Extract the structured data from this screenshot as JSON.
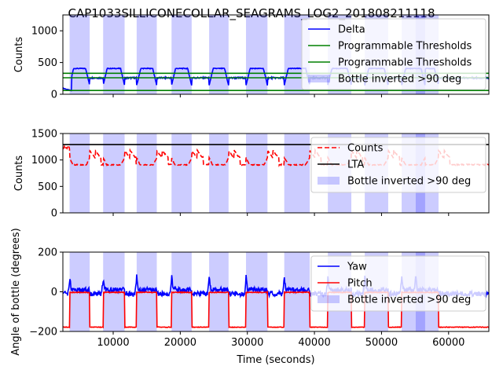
{
  "chart_data": {
    "title": "CAP1033SILLICONECOLLAR_SEAGRAMS_LOG2_201808211118",
    "xlabel": "Time (seconds)",
    "xlim": [
      2500,
      66000
    ],
    "x_ticks": [
      10000,
      20000,
      30000,
      40000,
      50000,
      60000
    ],
    "x_tick_labels": [
      "10000",
      "20000",
      "30000",
      "40000",
      "50000",
      "60000"
    ],
    "inverted_intervals": [
      [
        3500,
        6500
      ],
      [
        8500,
        11700
      ],
      [
        13500,
        16500
      ],
      [
        18700,
        21700
      ],
      [
        24300,
        27200
      ],
      [
        29800,
        33000
      ],
      [
        35500,
        39300
      ],
      [
        42000,
        45500
      ],
      [
        47500,
        51000
      ],
      [
        53000,
        56500
      ],
      [
        55100,
        58500
      ]
    ],
    "inverted_color": "#0000ff",
    "panels": [
      {
        "type": "line",
        "ylabel": "Counts",
        "ylim": [
          0,
          1250
        ],
        "y_ticks": [
          0,
          500,
          1000
        ],
        "y_tick_labels": [
          "0",
          "500",
          "1000"
        ],
        "legend_position": "top-right",
        "series": [
          {
            "name": "Delta",
            "color": "#0000ff",
            "style": "solid",
            "shape": "delta",
            "low": 130,
            "high": 400
          },
          {
            "name": "Programmable Thresholds",
            "color": "#008000",
            "style": "solid",
            "shape": "const",
            "value": 330
          },
          {
            "name": "Programmable Thresholds",
            "color": "#008000",
            "style": "solid",
            "shape": "const",
            "value": 260
          },
          {
            "name": "",
            "color": "#008000",
            "style": "solid",
            "shape": "const",
            "value": 60
          }
        ],
        "legend_entries": [
          {
            "label": "Delta",
            "color": "#0000ff",
            "kind": "line"
          },
          {
            "label": "Programmable Thresholds",
            "color": "#008000",
            "kind": "line"
          },
          {
            "label": "Programmable Thresholds",
            "color": "#008000",
            "kind": "line"
          },
          {
            "label": "Bottle inverted >90 deg",
            "color": "#0000ff",
            "kind": "patch"
          }
        ]
      },
      {
        "type": "line",
        "ylabel": "Counts",
        "ylim": [
          0,
          1500
        ],
        "y_ticks": [
          0,
          500,
          1000,
          1500
        ],
        "y_tick_labels": [
          "0",
          "500",
          "1000",
          "1500"
        ],
        "legend_position": "top-right",
        "series": [
          {
            "name": "Counts",
            "color": "#ff0000",
            "style": "dashed",
            "shape": "counts",
            "low": 900,
            "high": 1170
          },
          {
            "name": "LTA",
            "color": "#000000",
            "style": "solid",
            "shape": "const",
            "value": 1290
          }
        ],
        "legend_entries": [
          {
            "label": "Counts",
            "color": "#ff0000",
            "kind": "dashed"
          },
          {
            "label": "LTA",
            "color": "#000000",
            "kind": "line"
          },
          {
            "label": "Bottle inverted >90 deg",
            "color": "#0000ff",
            "kind": "patch"
          }
        ]
      },
      {
        "type": "line",
        "ylabel": "Angle of bottle (degrees)",
        "ylim": [
          -200,
          200
        ],
        "y_ticks": [
          -200,
          0,
          200
        ],
        "y_tick_labels": [
          "−200",
          "0",
          "200"
        ],
        "legend_position": "top-right",
        "series": [
          {
            "name": "Yaw",
            "color": "#0000ff",
            "style": "solid",
            "shape": "yaw"
          },
          {
            "name": "Pitch",
            "color": "#ff0000",
            "style": "solid",
            "shape": "pitch",
            "low": -180,
            "high": -5
          }
        ],
        "legend_entries": [
          {
            "label": "Yaw",
            "color": "#0000ff",
            "kind": "line"
          },
          {
            "label": "Pitch",
            "color": "#ff0000",
            "kind": "line"
          },
          {
            "label": "Bottle inverted >90 deg",
            "color": "#0000ff",
            "kind": "patch"
          }
        ]
      }
    ]
  }
}
